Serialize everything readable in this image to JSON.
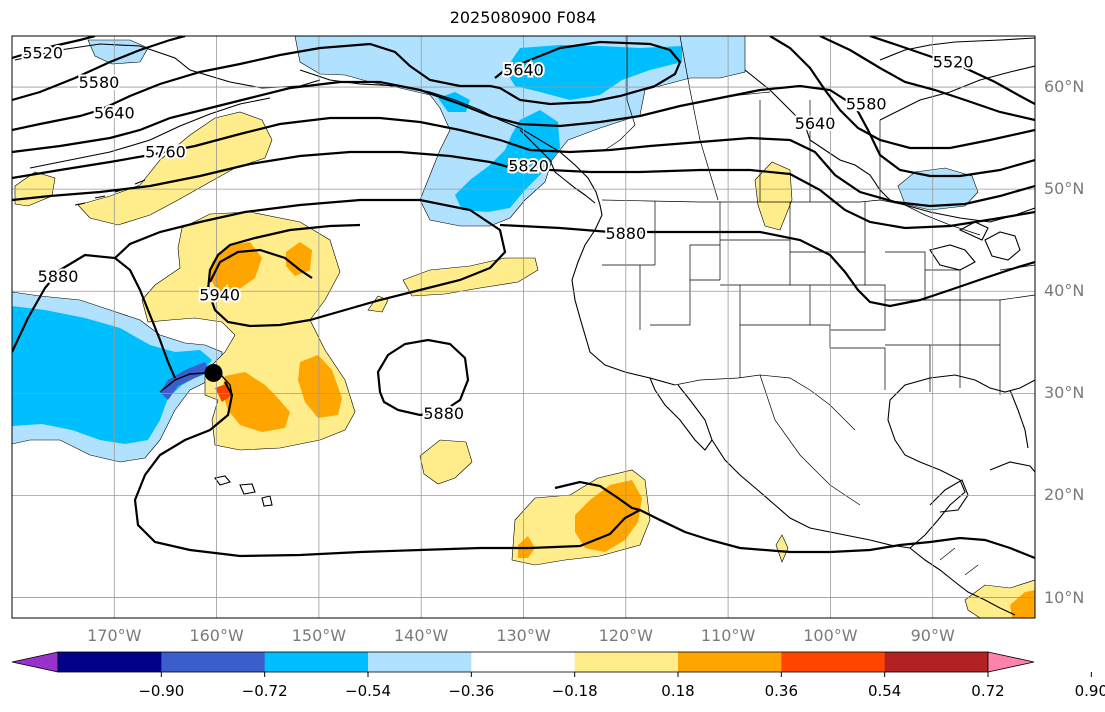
{
  "title": "2025080900 F084",
  "map": {
    "lon_range": [
      -180,
      -80
    ],
    "lat_range": [
      8,
      65
    ],
    "lat_ticks": [
      {
        "value": 60,
        "label": "60°N"
      },
      {
        "value": 50,
        "label": "50°N"
      },
      {
        "value": 40,
        "label": "40°N"
      },
      {
        "value": 30,
        "label": "30°N"
      },
      {
        "value": 20,
        "label": "20°N"
      },
      {
        "value": 10,
        "label": "10°N"
      }
    ],
    "lon_ticks": [
      {
        "value": -170,
        "label": "170°W"
      },
      {
        "value": -160,
        "label": "160°W"
      },
      {
        "value": -150,
        "label": "150°W"
      },
      {
        "value": -140,
        "label": "140°W"
      },
      {
        "value": -130,
        "label": "130°W"
      },
      {
        "value": -120,
        "label": "120°W"
      },
      {
        "value": -110,
        "label": "110°W"
      },
      {
        "value": -100,
        "label": "100°W"
      },
      {
        "value": -90,
        "label": "90°W"
      }
    ],
    "grid": true,
    "contour_labels": [
      {
        "text": "5520",
        "lon": -177,
        "lat": 63.4
      },
      {
        "text": "5580",
        "lon": -171.5,
        "lat": 60.5
      },
      {
        "text": "5640",
        "lon": -170,
        "lat": 57.5
      },
      {
        "text": "5760",
        "lon": -165,
        "lat": 53.7
      },
      {
        "text": "5640",
        "lon": -130,
        "lat": 61.7
      },
      {
        "text": "5820",
        "lon": -129.5,
        "lat": 52.3
      },
      {
        "text": "5640",
        "lon": -101.5,
        "lat": 56.5
      },
      {
        "text": "5580",
        "lon": -96.5,
        "lat": 58.4
      },
      {
        "text": "5520",
        "lon": -88,
        "lat": 62.5
      },
      {
        "text": "5880",
        "lon": -120,
        "lat": 45.7
      },
      {
        "text": "5940",
        "lon": -159.7,
        "lat": 39.7
      },
      {
        "text": "5880",
        "lon": -175.5,
        "lat": 41.5
      },
      {
        "text": "5880",
        "lon": -137.8,
        "lat": 28.1
      }
    ],
    "storm_marker": {
      "lon": -160.3,
      "lat": 32.0
    }
  },
  "colorbar": {
    "colors": [
      "#9932cc",
      "#00008b",
      "#3a5fcd",
      "#00bfff",
      "#b0e2ff",
      "#ffffff",
      "#ffec8b",
      "#ffa500",
      "#ff4500",
      "#b22222",
      "#ff82ab"
    ],
    "ticks": [
      "−0.90",
      "−0.72",
      "−0.54",
      "−0.36",
      "−0.18",
      "0.18",
      "0.36",
      "0.54",
      "0.72",
      "0.90"
    ]
  }
}
